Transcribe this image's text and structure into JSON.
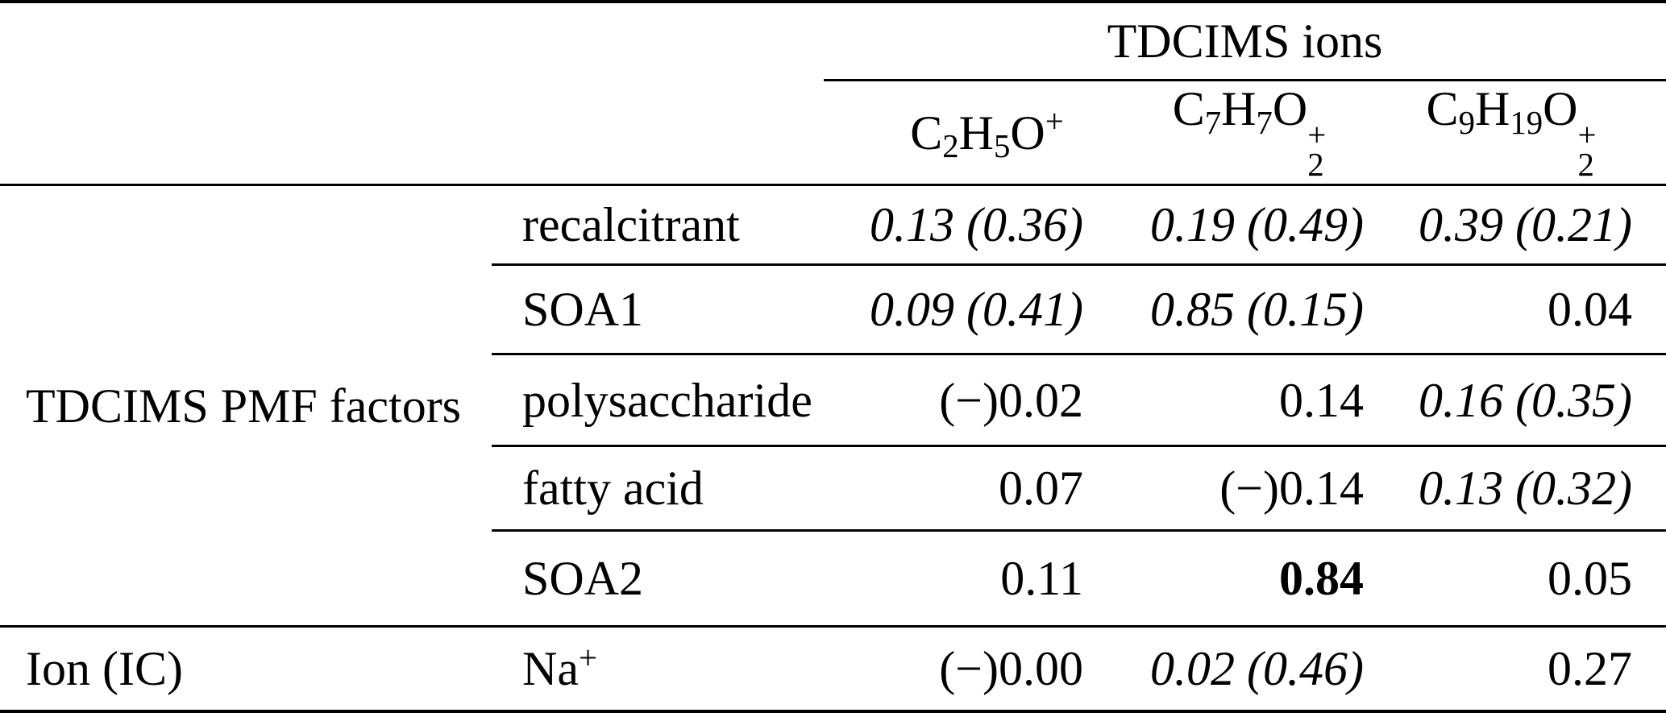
{
  "table": {
    "ions_group_header": "TDCIMS ions",
    "ion_columns": [
      {
        "name": "C2H5O+",
        "segments": [
          {
            "b": "C"
          },
          {
            "sub": "2"
          },
          {
            "b": "H"
          },
          {
            "sub": "5"
          },
          {
            "b": "O"
          },
          {
            "sup": "+"
          }
        ]
      },
      {
        "name": "C7H7O2+",
        "segments": [
          {
            "b": "C"
          },
          {
            "sub": "7"
          },
          {
            "b": "H"
          },
          {
            "sub": "7"
          },
          {
            "b": "O"
          },
          {
            "sub": "2",
            "sup": "+"
          }
        ]
      },
      {
        "name": "C9H19O2+",
        "segments": [
          {
            "b": "C"
          },
          {
            "sub": "9"
          },
          {
            "b": "H"
          },
          {
            "sub": "19"
          },
          {
            "b": "O"
          },
          {
            "sub": "2",
            "sup": "+"
          }
        ]
      }
    ],
    "groups": [
      {
        "label": "TDCIMS PMF factors",
        "rows": [
          {
            "label": "recalcitrant",
            "values": [
              {
                "text": "0.13 (0.36)",
                "style": "italic"
              },
              {
                "text": "0.19 (0.49)",
                "style": "italic"
              },
              {
                "text": "0.39 (0.21)",
                "style": "italic"
              }
            ]
          },
          {
            "label": "SOA1",
            "values": [
              {
                "text": "0.09 (0.41)",
                "style": "italic"
              },
              {
                "text": "0.85 (0.15)",
                "style": "italic"
              },
              {
                "text": "0.04",
                "style": "plain"
              }
            ]
          },
          {
            "label": "polysaccharide",
            "values": [
              {
                "text": "(−)0.02",
                "style": "plain"
              },
              {
                "text": "0.14",
                "style": "plain"
              },
              {
                "text": "0.16 (0.35)",
                "style": "italic"
              }
            ]
          },
          {
            "label": "fatty acid",
            "values": [
              {
                "text": "0.07",
                "style": "plain"
              },
              {
                "text": "(−)0.14",
                "style": "plain"
              },
              {
                "text": "0.13 (0.32)",
                "style": "italic"
              }
            ]
          },
          {
            "label": "SOA2",
            "values": [
              {
                "text": "0.11",
                "style": "plain"
              },
              {
                "text": "0.84",
                "style": "bold"
              },
              {
                "text": "0.05",
                "style": "plain"
              }
            ]
          }
        ]
      },
      {
        "label": "Ion (IC)",
        "rows": [
          {
            "label": "Na+",
            "label_segments": [
              {
                "b": "Na"
              },
              {
                "sup": "+"
              }
            ],
            "values": [
              {
                "text": "(−)0.00",
                "style": "plain"
              },
              {
                "text": "0.02 (0.46)",
                "style": "italic"
              },
              {
                "text": "0.27",
                "style": "plain"
              }
            ]
          }
        ]
      }
    ],
    "colors": {
      "text": "#000000",
      "rule": "#000000",
      "background": "#ffffff"
    }
  }
}
